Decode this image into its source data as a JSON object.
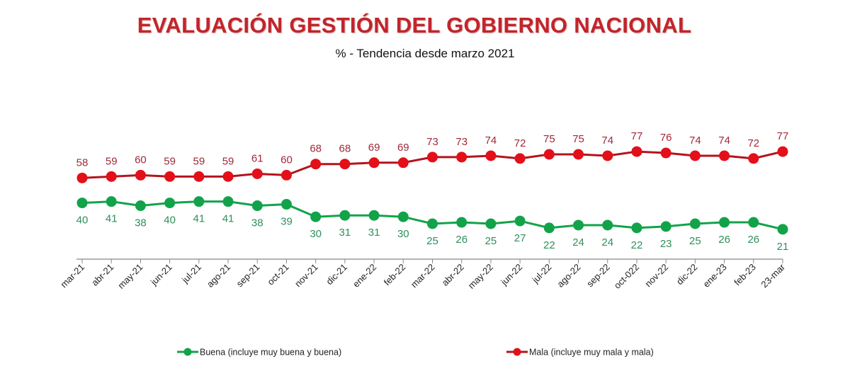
{
  "chart_data": {
    "type": "line",
    "title": "EVALUACIÓN GESTIÓN DEL GOBIERNO NACIONAL",
    "subtitle": "% - Tendencia desde marzo 2021",
    "xlabel": "",
    "ylabel": "",
    "ylim": [
      0,
      100
    ],
    "grid": false,
    "legend_position": "bottom",
    "categories": [
      "mar-21",
      "abr-21",
      "may-21",
      "jun-21",
      "jul-21",
      "ago-21",
      "sep-21",
      "oct-21",
      "nov-21",
      "dic-21",
      "ene-22",
      "feb-22",
      "mar-22",
      "abr-22",
      "may-22",
      "jun-22",
      "jul-22",
      "ago-22",
      "sep-22",
      "oct-022",
      "nov-22",
      "dic-22",
      "ene-23",
      "feb-23",
      "23-mar"
    ],
    "series": [
      {
        "name": "Buena (incluye muy buena y buena)",
        "color": "#12a34a",
        "label_color": "#2f8f5a",
        "values": [
          40,
          41,
          38,
          40,
          41,
          41,
          38,
          39,
          30,
          31,
          31,
          30,
          25,
          26,
          25,
          27,
          22,
          24,
          24,
          22,
          23,
          25,
          26,
          26,
          21
        ]
      },
      {
        "name": "Mala (incluye muy mala y mala)",
        "color": "#e3101a",
        "line_color": "#b3141c",
        "label_color": "#a0283a",
        "values": [
          58,
          59,
          60,
          59,
          59,
          59,
          61,
          60,
          68,
          68,
          69,
          69,
          73,
          73,
          74,
          72,
          75,
          75,
          74,
          77,
          76,
          74,
          74,
          72,
          77
        ]
      }
    ]
  }
}
